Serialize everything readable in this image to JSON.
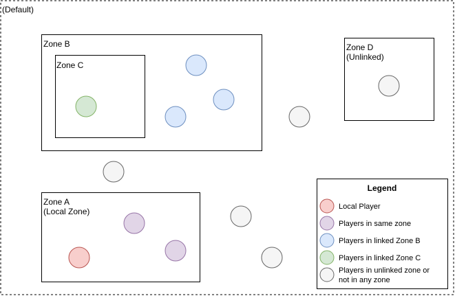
{
  "default_zone": {
    "label": "(Default)"
  },
  "zones": {
    "b": {
      "label": "Zone B"
    },
    "c": {
      "label": "Zone C"
    },
    "d": {
      "label_line1": "Zone D",
      "label_line2": "(Unlinked)"
    },
    "a": {
      "label_line1": "Zone A",
      "label_line2": "(Local Zone)"
    }
  },
  "legend": {
    "title": "Legend",
    "items": [
      {
        "label": "Local Player",
        "fill": "#F8CECC",
        "stroke": "#B85450"
      },
      {
        "label": "Players in same zone",
        "fill": "#E1D5E7",
        "stroke": "#9673A6"
      },
      {
        "label": "Players in linked Zone B",
        "fill": "#DAE8FC",
        "stroke": "#6C8EBF"
      },
      {
        "label": "Players in linked Zone C",
        "fill": "#D5E8D4",
        "stroke": "#82B366"
      },
      {
        "label_line1": "Players in unlinked zone or",
        "label_line2": "not in any zone",
        "fill": "#F5F5F5",
        "stroke": "#666666"
      }
    ]
  },
  "colors": {
    "local": {
      "fill": "#F8CECC",
      "stroke": "#B85450"
    },
    "same_zone": {
      "fill": "#E1D5E7",
      "stroke": "#9673A6"
    },
    "zone_b": {
      "fill": "#DAE8FC",
      "stroke": "#6C8EBF"
    },
    "zone_c": {
      "fill": "#D5E8D4",
      "stroke": "#82B366"
    },
    "unlinked": {
      "fill": "#F5F5F5",
      "stroke": "#666666"
    }
  }
}
